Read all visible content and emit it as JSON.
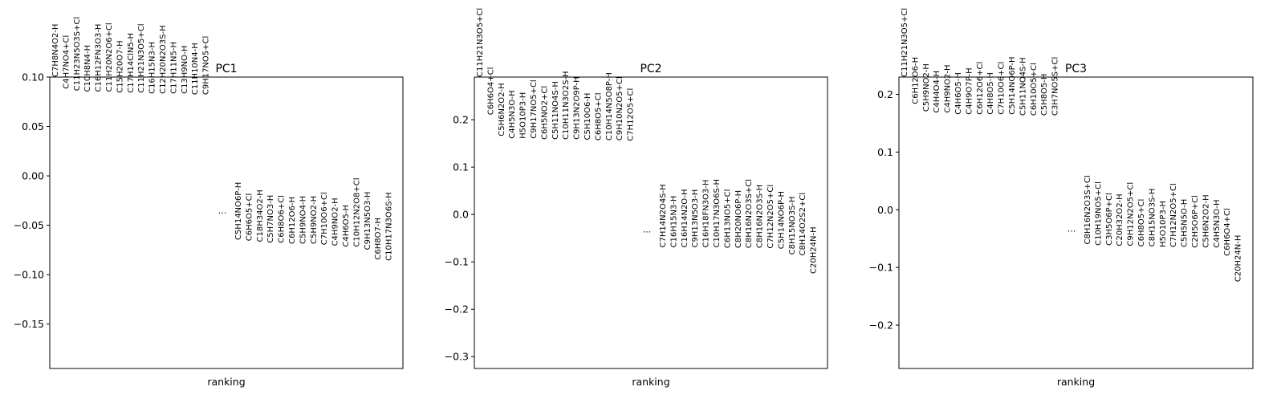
{
  "chart_data": [
    {
      "type": "scatter",
      "title": "PC1",
      "xlabel": "ranking",
      "ylabel": "",
      "ylim": [
        -0.195,
        0.1
      ],
      "yticks": [
        "0.10",
        "0.05",
        "0.00",
        "−0.05",
        "−0.10",
        "−0.15"
      ],
      "ellipsis": "...",
      "top_labels": [
        "C7H8N4O2-H",
        "C4H7NO4+Cl",
        "C11H23N5O3S+Cl",
        "C10H8N4-H",
        "C16H12FN3O3-H",
        "C11H20N2O6+Cl",
        "C15H20O7-H",
        "C17H14ClN5-H",
        "C11H21N3O5+Cl",
        "C16H15N3-H",
        "C12H20N2O3S-H",
        "C17H11N5-H",
        "C13H9NO-H",
        "C11H10N4-H",
        "C9H17NO5+Cl"
      ],
      "top_values": [
        0.1,
        0.088,
        0.086,
        0.085,
        0.085,
        0.085,
        0.084,
        0.084,
        0.084,
        0.083,
        0.083,
        0.083,
        0.083,
        0.082,
        0.082
      ],
      "bottom_labels": [
        "C5H14NO6P-H",
        "C6H6O5+Cl",
        "C18H34O2-H",
        "C5H7NO3-H",
        "C6H8O6+Cl",
        "C6H12O6-H",
        "C5H9NO4-H",
        "C5H9NO2-H",
        "C7H10O6+Cl",
        "C4H9NO2-H",
        "C4H6O5-H",
        "C10H12N2O8+Cl",
        "C9H13N5O3-H",
        "C6H8O7-H",
        "C10H17N3O6S-H"
      ],
      "bottom_values": [
        -0.065,
        -0.066,
        -0.067,
        -0.068,
        -0.068,
        -0.069,
        -0.069,
        -0.069,
        -0.07,
        -0.071,
        -0.072,
        -0.072,
        -0.075,
        -0.085,
        -0.086
      ]
    },
    {
      "type": "scatter",
      "title": "PC2",
      "xlabel": "ranking",
      "ylabel": "",
      "ylim": [
        -0.325,
        0.29
      ],
      "yticks": [
        "0.2",
        "0.1",
        "0.0",
        "−0.1",
        "−0.2",
        "−0.3"
      ],
      "ellipsis": "...",
      "top_labels": [
        "C11H21N3O5+Cl",
        "C6H6O4+Cl",
        "C5H6N2O2-H",
        "C4H5N3O-H",
        "H5O10P3-H",
        "C9H17NO5+Cl",
        "C6H5NO2+Cl",
        "C5H11NO4S-H",
        "C10H11N3O2S-H",
        "C9H13N2O9P-H",
        "C5H10O6-H",
        "C6H8O5+Cl",
        "C10H14N5O8P-H",
        "C9H10N2O5+Cl",
        "C7H12O5+Cl"
      ],
      "top_values": [
        0.29,
        0.21,
        0.165,
        0.16,
        0.16,
        0.16,
        0.158,
        0.158,
        0.158,
        0.158,
        0.157,
        0.156,
        0.156,
        0.156,
        0.155
      ],
      "bottom_labels": [
        "C7H14N2O4S-H",
        "C16H15N3-H",
        "C16H14N2O-H",
        "C9H13N5O3-H",
        "C16H18FN3O3-H",
        "C10H17N3O6S-H",
        "C6H13NO5+Cl",
        "C8H20NO6P-H",
        "C8H16N2O3S+Cl",
        "C8H16N2O3S-H",
        "C7H12N2O5+Cl",
        "C5H14NO6P-H",
        "C8H15NO3S-H",
        "C8H14O2S2+Cl",
        "C20H24N-H"
      ],
      "bottom_values": [
        -0.07,
        -0.07,
        -0.07,
        -0.07,
        -0.07,
        -0.07,
        -0.071,
        -0.071,
        -0.071,
        -0.071,
        -0.072,
        -0.073,
        -0.085,
        -0.087,
        -0.125
      ]
    },
    {
      "type": "scatter",
      "title": "PC3",
      "xlabel": "ranking",
      "ylabel": "",
      "ylim": [
        -0.275,
        0.23
      ],
      "yticks": [
        "0.2",
        "0.1",
        "0.0",
        "−0.1",
        "−0.2"
      ],
      "ellipsis": "...",
      "top_labels": [
        "C11H21N3O5+Cl",
        "C6H12O6-H",
        "C5H9NO2-H",
        "C4H4O4-H",
        "C4H9NO2-H",
        "C4H6O5-H",
        "C4H9O7P-H",
        "C6H12O6+Cl",
        "C4H8O5-H",
        "C7H10O6+Cl",
        "C5H14NO6P-H",
        "C5H11NO4S-H",
        "C6H10O5+Cl",
        "C5H8O5-H",
        "C3H7NO5S+Cl"
      ],
      "top_values": [
        0.23,
        0.183,
        0.17,
        0.168,
        0.168,
        0.165,
        0.165,
        0.165,
        0.165,
        0.165,
        0.165,
        0.163,
        0.163,
        0.163,
        0.163
      ],
      "bottom_labels": [
        "C8H16N2O3S+Cl",
        "C10H19NO5+Cl",
        "C3H5O6P+Cl",
        "C20H32O2-H",
        "C9H12N2O5+Cl",
        "C6H8O5+Cl",
        "C8H15NO3S-H",
        "H5O10P3-H",
        "C7H12N2O5+Cl",
        "C5H5N5O-H",
        "C2H5O6P+Cl",
        "C5H6N2O2-H",
        "C4H5N3O-H",
        "C6H6O4+Cl",
        "C20H24N-H"
      ],
      "bottom_values": [
        -0.06,
        -0.062,
        -0.062,
        -0.063,
        -0.063,
        -0.064,
        -0.064,
        -0.065,
        -0.065,
        -0.065,
        -0.066,
        -0.066,
        -0.066,
        -0.08,
        -0.125
      ]
    }
  ]
}
